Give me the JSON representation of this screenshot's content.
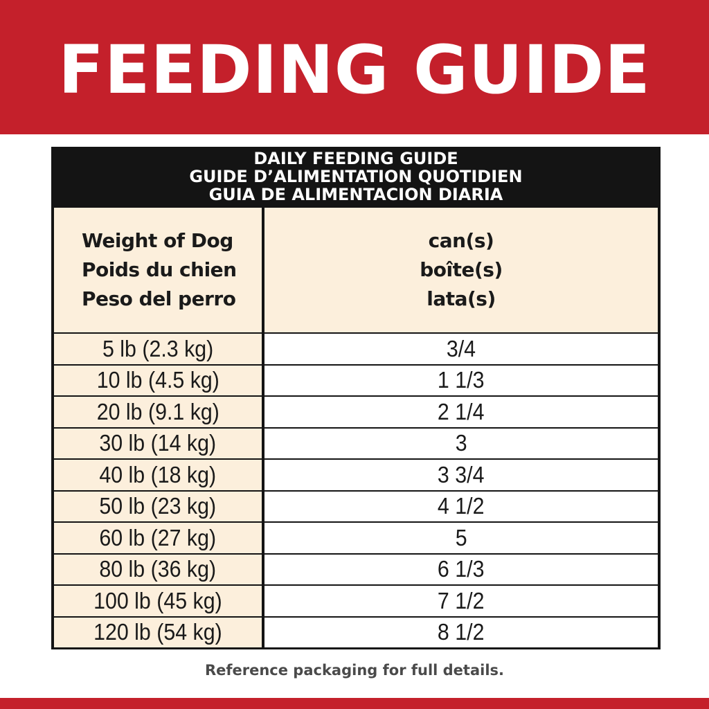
{
  "banner": {
    "title": "FEEDING GUIDE",
    "color": "#c4202b"
  },
  "table": {
    "title_lines": [
      "DAILY FEEDING GUIDE",
      "GUIDE D’ALIMENTATION QUOTIDIEN",
      "GUIA DE ALIMENTACION DIARIA"
    ],
    "header_weight": [
      "Weight of Dog",
      "Poids du chien",
      "Peso del perro"
    ],
    "header_amount": [
      "can(s)",
      "boîte(s)",
      "lata(s)"
    ],
    "rows": [
      {
        "weight": "5 lb (2.3 kg)",
        "amount": "3/4"
      },
      {
        "weight": "10 lb (4.5 kg)",
        "amount": "1 1/3"
      },
      {
        "weight": "20 lb (9.1 kg)",
        "amount": "2 1/4"
      },
      {
        "weight": "30 lb (14 kg)",
        "amount": "3"
      },
      {
        "weight": "40 lb (18 kg)",
        "amount": "3 3/4"
      },
      {
        "weight": "50 lb (23 kg)",
        "amount": "4 1/2"
      },
      {
        "weight": "60 lb (27 kg)",
        "amount": "5"
      },
      {
        "weight": "80 lb (36 kg)",
        "amount": "6 1/3"
      },
      {
        "weight": "100 lb (45 kg)",
        "amount": "7 1/2"
      },
      {
        "weight": "120 lb (54 kg)",
        "amount": "8 1/2"
      }
    ]
  },
  "footnote": "Reference packaging for full details."
}
